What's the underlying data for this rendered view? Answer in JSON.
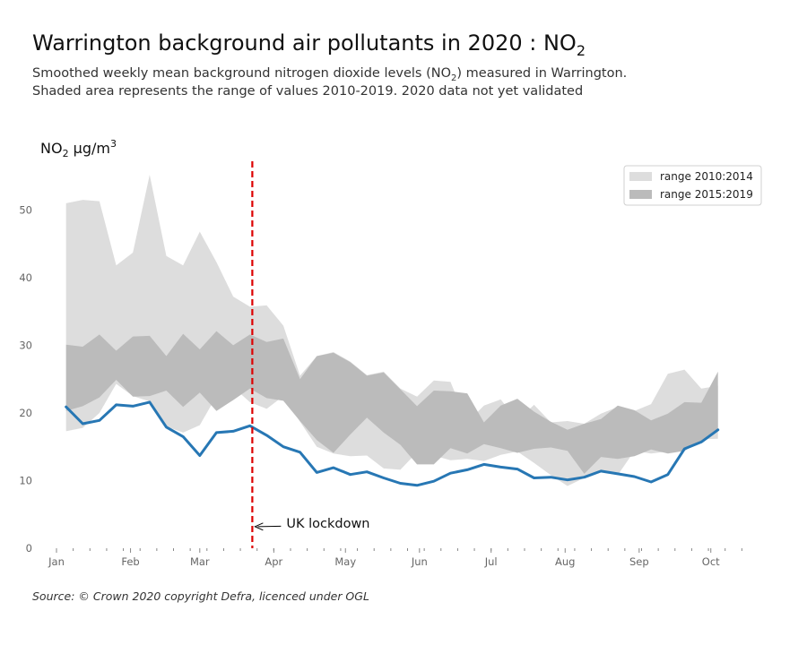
{
  "title": {
    "text": "Warrington background air pollutants in 2020 : NO",
    "sub": "2"
  },
  "subtitle": {
    "line1_pre": "Smoothed weekly mean background nitrogen dioxide levels (NO",
    "line1_sub": "2",
    "line1_post": ") measured in Warrington.",
    "line2": "Shaded area represents the range of values 2010-2019. 2020 data not yet validated"
  },
  "source": "Source: © Crown 2020 copyright Defra,  licenced under OGL",
  "chart_data": {
    "type": "area",
    "ylabel": {
      "pre": "NO",
      "sub": "2",
      "post": " μg/m",
      "sup": "3"
    },
    "ylim": [
      0,
      58
    ],
    "yticks": [
      0,
      10,
      20,
      30,
      40,
      50
    ],
    "xlim": [
      "2020-01-01",
      "2020-10-18"
    ],
    "x_tick_labels": [
      {
        "label": "Jan",
        "date": "2020-01-01"
      },
      {
        "label": "Feb",
        "date": "2020-02-01"
      },
      {
        "label": "Mar",
        "date": "2020-03-01"
      },
      {
        "label": "Apr",
        "date": "2020-04-01"
      },
      {
        "label": "May",
        "date": "2020-05-01"
      },
      {
        "label": "Jun",
        "date": "2020-06-01"
      },
      {
        "label": "Jul",
        "date": "2020-07-01"
      },
      {
        "label": "Aug",
        "date": "2020-08-01"
      },
      {
        "label": "Sep",
        "date": "2020-09-01"
      },
      {
        "label": "Oct",
        "date": "2020-10-01"
      }
    ],
    "x": [
      "2020-01-05",
      "2020-01-12",
      "2020-01-19",
      "2020-01-26",
      "2020-02-02",
      "2020-02-09",
      "2020-02-16",
      "2020-02-23",
      "2020-03-01",
      "2020-03-08",
      "2020-03-15",
      "2020-03-22",
      "2020-03-29",
      "2020-04-05",
      "2020-04-12",
      "2020-04-19",
      "2020-04-26",
      "2020-05-03",
      "2020-05-10",
      "2020-05-17",
      "2020-05-24",
      "2020-05-31",
      "2020-06-07",
      "2020-06-14",
      "2020-06-21",
      "2020-06-28",
      "2020-07-05",
      "2020-07-12",
      "2020-07-19",
      "2020-07-26",
      "2020-08-02",
      "2020-08-09",
      "2020-08-16",
      "2020-08-23",
      "2020-08-30",
      "2020-09-06",
      "2020-09-13",
      "2020-09-20",
      "2020-09-27",
      "2020-10-04"
    ],
    "series": [
      {
        "name": "range 2010:2014",
        "color": "#dddddd",
        "kind": "band",
        "low": [
          17.3,
          17.8,
          20.0,
          24.3,
          22.5,
          21.7,
          18.0,
          17.1,
          18.2,
          22.5,
          23.8,
          21.6,
          20.6,
          22.5,
          18.7,
          15.0,
          14.0,
          13.6,
          13.7,
          11.8,
          11.6,
          14.2,
          13.7,
          13.0,
          13.2,
          12.9,
          13.8,
          14.3,
          12.6,
          10.8,
          9.2,
          10.4,
          11.3,
          10.8,
          14.4,
          14.0,
          14.3,
          15.0,
          16.1,
          16.2
        ],
        "high": [
          51.0,
          51.5,
          51.3,
          41.8,
          43.7,
          55.2,
          43.2,
          41.8,
          46.8,
          42.3,
          37.2,
          35.7,
          35.9,
          32.9,
          25.5,
          28.4,
          29.0,
          27.6,
          25.6,
          26.1,
          23.6,
          22.4,
          24.8,
          24.6,
          18.6,
          21.1,
          22.0,
          18.9,
          21.2,
          18.6,
          18.8,
          18.4,
          19.9,
          20.9,
          20.3,
          21.3,
          25.8,
          26.4,
          23.6,
          24.0
        ]
      },
      {
        "name": "range 2015:2019",
        "color": "#bbbbbb",
        "kind": "band",
        "low": [
          20.3,
          21.0,
          22.3,
          24.9,
          22.4,
          22.5,
          23.3,
          20.9,
          23.0,
          20.3,
          21.9,
          23.6,
          22.2,
          21.8,
          18.8,
          16.0,
          14.1,
          16.8,
          19.3,
          17.1,
          15.3,
          12.4,
          12.4,
          14.8,
          14.0,
          15.4,
          14.8,
          14.1,
          14.7,
          14.9,
          14.4,
          11.0,
          13.5,
          13.2,
          13.6,
          14.6,
          14.0,
          14.4,
          15.9,
          17.5
        ],
        "high": [
          30.1,
          29.8,
          31.6,
          29.2,
          31.3,
          31.4,
          28.4,
          31.7,
          29.4,
          32.1,
          30.0,
          31.6,
          30.5,
          31.0,
          25.0,
          28.4,
          28.9,
          27.5,
          25.5,
          26.0,
          23.5,
          21.0,
          23.3,
          23.2,
          22.9,
          18.6,
          21.1,
          22.1,
          20.2,
          18.7,
          17.5,
          18.4,
          19.1,
          21.1,
          20.4,
          18.9,
          19.9,
          21.6,
          21.5,
          26.1
        ]
      },
      {
        "name": "2020",
        "color": "#2777b4",
        "kind": "line",
        "values": [
          20.9,
          18.4,
          18.9,
          21.2,
          21.0,
          21.6,
          17.9,
          16.5,
          13.7,
          17.1,
          17.3,
          18.1,
          16.7,
          15.0,
          14.2,
          11.2,
          11.9,
          10.9,
          11.3,
          10.4,
          9.6,
          9.3,
          9.9,
          11.1,
          11.6,
          12.4,
          12.0,
          11.7,
          10.4,
          10.5,
          10.1,
          10.5,
          11.4,
          11.0,
          10.6,
          9.8,
          10.9,
          14.7,
          15.7,
          17.5
        ]
      }
    ],
    "annotations": [
      {
        "text": "UK lockdown",
        "date": "2020-03-23",
        "value": 3.2,
        "style": "dashed-vertical-line",
        "color": "#dd0000"
      }
    ],
    "legend_position": "top-right",
    "grid": false
  }
}
